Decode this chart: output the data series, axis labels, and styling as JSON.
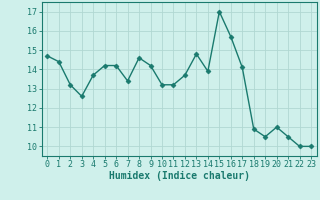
{
  "x": [
    0,
    1,
    2,
    3,
    4,
    5,
    6,
    7,
    8,
    9,
    10,
    11,
    12,
    13,
    14,
    15,
    16,
    17,
    18,
    19,
    20,
    21,
    22,
    23
  ],
  "y": [
    14.7,
    14.4,
    13.2,
    12.6,
    13.7,
    14.2,
    14.2,
    13.4,
    14.6,
    14.2,
    13.2,
    13.2,
    13.7,
    14.8,
    13.9,
    17.0,
    15.7,
    14.1,
    10.9,
    10.5,
    11.0,
    10.5,
    10.0,
    10.0
  ],
  "line_color": "#1a7a6e",
  "marker": "D",
  "marker_size": 2.5,
  "line_width": 1.0,
  "bg_color": "#cff0eb",
  "grid_color": "#b0d8d2",
  "xlabel": "Humidex (Indice chaleur)",
  "ylim": [
    9.5,
    17.5
  ],
  "xlim": [
    -0.5,
    23.5
  ],
  "yticks": [
    10,
    11,
    12,
    13,
    14,
    15,
    16,
    17
  ],
  "xticks": [
    0,
    1,
    2,
    3,
    4,
    5,
    6,
    7,
    8,
    9,
    10,
    11,
    12,
    13,
    14,
    15,
    16,
    17,
    18,
    19,
    20,
    21,
    22,
    23
  ],
  "tick_color": "#1a7a6e",
  "label_fontsize": 7,
  "tick_fontsize": 6,
  "spine_color": "#1a7a6e"
}
